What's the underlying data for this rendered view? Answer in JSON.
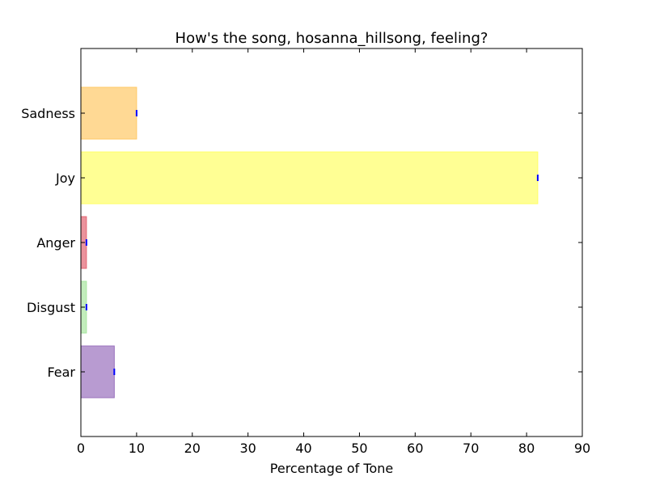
{
  "chart_data": {
    "type": "bar",
    "orientation": "horizontal",
    "title": "How's the song, hosanna_hillsong, feeling?",
    "xlabel": "Percentage of Tone",
    "ylabel": "",
    "xlim": [
      0,
      90
    ],
    "xticks": [
      "0",
      "10",
      "20",
      "30",
      "40",
      "50",
      "60",
      "70",
      "80",
      "90"
    ],
    "categories": [
      "Fear",
      "Disgust",
      "Anger",
      "Joy",
      "Sadness"
    ],
    "values": [
      6,
      1,
      1,
      82,
      10
    ],
    "colors": [
      "#9a71bd",
      "#a8e6a0",
      "#e36472",
      "#ffff66",
      "#ffc966"
    ],
    "grid": false,
    "legend": "none"
  }
}
